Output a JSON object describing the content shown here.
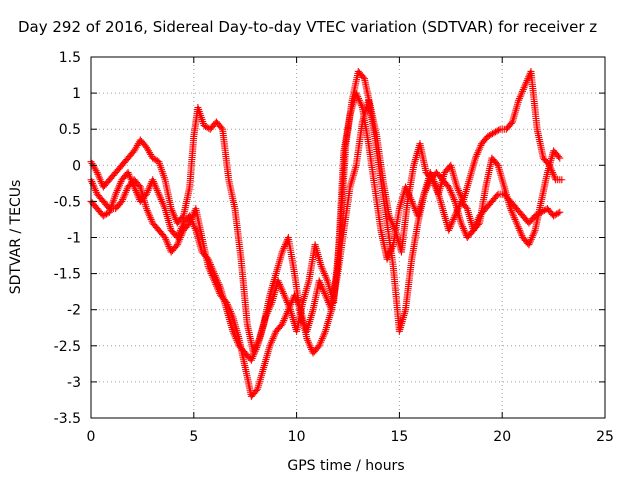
{
  "chart_data": {
    "type": "scatter",
    "title": "Day 292 of 2016, Sidereal Day-to-day VTEC variation (SDTVAR) for receiver z",
    "xlabel": "GPS time / hours",
    "ylabel": "SDTVAR / TECUs",
    "xlim": [
      0,
      25
    ],
    "ylim": [
      -3.5,
      1.5
    ],
    "x_ticks": [
      "0",
      "5",
      "10",
      "15",
      "20",
      "25"
    ],
    "y_ticks": [
      "-3.5",
      "-3",
      "-2.5",
      "-2",
      "-1.5",
      "-1",
      "-0.5",
      "0",
      "0.5",
      "1",
      "1.5"
    ],
    "grid": true,
    "marker": "plus",
    "color": "#ff0000",
    "series": [
      {
        "x": [
          0.0,
          0.3,
          0.6,
          0.9,
          1.2,
          1.5,
          1.8,
          2.1,
          2.4,
          2.7,
          3.0,
          3.3,
          3.6,
          3.9,
          4.2,
          4.5,
          4.8,
          5.0,
          5.2,
          5.5,
          5.8,
          6.1,
          6.4,
          6.7,
          7.0,
          7.3,
          7.6,
          7.9,
          8.2,
          8.5,
          8.8,
          9.1,
          9.4,
          9.7,
          10.0,
          10.3,
          10.6,
          10.9,
          11.2,
          11.5,
          11.8,
          12.1,
          12.4,
          12.7,
          13.0,
          13.3,
          13.6,
          13.9,
          14.2,
          14.5,
          14.8,
          15.1,
          15.4,
          15.7,
          16.0,
          16.3,
          16.6,
          16.9,
          17.2,
          17.5,
          17.8,
          18.1,
          18.4,
          18.7,
          19.0,
          19.3,
          19.6,
          19.9,
          20.2,
          20.5,
          20.8,
          21.1,
          21.4,
          21.7,
          22.0,
          22.3,
          22.6,
          22.9
        ],
        "y": [
          0.05,
          -0.1,
          -0.3,
          -0.2,
          -0.1,
          0.0,
          0.1,
          0.2,
          0.35,
          0.25,
          0.1,
          0.05,
          -0.2,
          -0.6,
          -0.8,
          -0.7,
          -0.3,
          0.4,
          0.8,
          0.55,
          0.5,
          0.6,
          0.5,
          -0.2,
          -0.6,
          -1.3,
          -2.2,
          -2.6,
          -2.4,
          -2.1,
          -1.9,
          -1.6,
          -1.8,
          -2.0,
          -2.3,
          -1.9,
          -1.6,
          -1.1,
          -1.4,
          -1.6,
          -1.9,
          -1.0,
          0.3,
          0.9,
          1.3,
          1.2,
          0.8,
          0.4,
          -0.2,
          -0.7,
          -0.9,
          -1.2,
          -0.5,
          0.0,
          0.3,
          -0.1,
          -0.2,
          -0.4,
          -0.1,
          0.0,
          -0.3,
          -0.5,
          -0.2,
          0.1,
          0.3,
          0.4,
          0.45,
          0.5,
          0.5,
          0.6,
          0.9,
          1.1,
          1.3,
          0.5,
          0.1,
          0.0,
          -0.2,
          -0.2
        ]
      },
      {
        "x": [
          0.0,
          0.3,
          0.6,
          0.9,
          1.2,
          1.5,
          1.8,
          2.1,
          2.4,
          2.7,
          3.0,
          3.3,
          3.6,
          3.9,
          4.2,
          4.5,
          4.8,
          5.1,
          5.4,
          5.7,
          6.0,
          6.3,
          6.6,
          6.9,
          7.2,
          7.5,
          7.8,
          8.1,
          8.4,
          8.7,
          9.0,
          9.3,
          9.6,
          9.9,
          10.2,
          10.5,
          10.8,
          11.1,
          11.4,
          11.7,
          12.0,
          12.3,
          12.6,
          12.9,
          13.2,
          13.5,
          13.8,
          14.1,
          14.4,
          14.7,
          15.0,
          15.3,
          15.6,
          15.9,
          16.2,
          16.5,
          16.8,
          17.1,
          17.4,
          17.7,
          18.0,
          18.3,
          18.6,
          18.9,
          19.2,
          19.5,
          19.8,
          20.1,
          20.4,
          20.7,
          21.0,
          21.3,
          21.6,
          21.9,
          22.2,
          22.5,
          22.8
        ],
        "y": [
          -0.2,
          -0.4,
          -0.5,
          -0.6,
          -0.6,
          -0.5,
          -0.3,
          -0.2,
          -0.3,
          -0.6,
          -0.8,
          -0.9,
          -1.0,
          -1.2,
          -1.1,
          -0.9,
          -0.8,
          -0.6,
          -1.0,
          -1.4,
          -1.6,
          -1.8,
          -1.9,
          -2.1,
          -2.4,
          -2.8,
          -3.2,
          -3.1,
          -2.8,
          -2.5,
          -2.3,
          -2.2,
          -2.0,
          -1.8,
          -2.0,
          -2.4,
          -2.6,
          -2.5,
          -2.3,
          -2.0,
          -1.5,
          -0.9,
          -0.3,
          0.0,
          0.6,
          0.9,
          0.4,
          -0.2,
          -0.8,
          -1.4,
          -2.3,
          -2.0,
          -1.3,
          -0.8,
          -0.4,
          -0.2,
          -0.1,
          -0.2,
          -0.3,
          -0.5,
          -0.8,
          -1.0,
          -0.9,
          -0.7,
          -0.6,
          -0.5,
          -0.4,
          -0.4,
          -0.5,
          -0.6,
          -0.7,
          -0.8,
          -0.7,
          -0.65,
          -0.6,
          -0.7,
          -0.65
        ]
      },
      {
        "x": [
          0.0,
          0.3,
          0.6,
          0.9,
          1.2,
          1.5,
          1.8,
          2.1,
          2.4,
          2.7,
          3.0,
          3.3,
          3.6,
          3.9,
          4.2,
          4.5,
          4.8,
          5.1,
          5.4,
          5.7,
          6.0,
          6.3,
          6.6,
          6.9,
          7.2,
          7.5,
          7.8,
          8.1,
          8.4,
          8.7,
          9.0,
          9.3,
          9.6,
          9.9,
          10.2,
          10.5,
          10.8,
          11.1,
          11.4,
          11.7,
          12.0,
          12.3,
          12.6,
          12.9,
          13.2,
          13.5,
          13.8,
          14.1,
          14.4,
          14.7,
          15.0,
          15.3,
          15.6,
          15.9,
          16.2,
          16.5,
          16.8,
          17.1,
          17.4,
          17.7,
          18.0,
          18.3,
          18.6,
          18.9,
          19.2,
          19.5,
          19.8,
          20.1,
          20.4,
          20.7,
          21.0,
          21.3,
          21.6,
          21.9,
          22.2,
          22.5,
          22.8
        ],
        "y": [
          -0.5,
          -0.6,
          -0.7,
          -0.65,
          -0.4,
          -0.2,
          -0.1,
          -0.3,
          -0.5,
          -0.4,
          -0.2,
          -0.4,
          -0.6,
          -0.9,
          -1.0,
          -0.8,
          -0.7,
          -0.9,
          -1.2,
          -1.3,
          -1.5,
          -1.7,
          -2.0,
          -2.3,
          -2.5,
          -2.6,
          -2.7,
          -2.5,
          -2.2,
          -1.8,
          -1.5,
          -1.2,
          -1.0,
          -1.5,
          -2.1,
          -2.3,
          -2.0,
          -1.6,
          -1.8,
          -2.0,
          -1.4,
          0.2,
          0.7,
          1.0,
          0.8,
          0.3,
          -0.3,
          -0.9,
          -1.3,
          -1.1,
          -0.6,
          -0.3,
          -0.5,
          -0.7,
          -0.4,
          -0.1,
          -0.3,
          -0.6,
          -0.9,
          -0.7,
          -0.5,
          -0.6,
          -0.9,
          -0.8,
          -0.3,
          0.1,
          0.0,
          -0.3,
          -0.6,
          -0.8,
          -1.0,
          -1.1,
          -0.9,
          -0.5,
          -0.1,
          0.2,
          0.1
        ]
      }
    ]
  }
}
